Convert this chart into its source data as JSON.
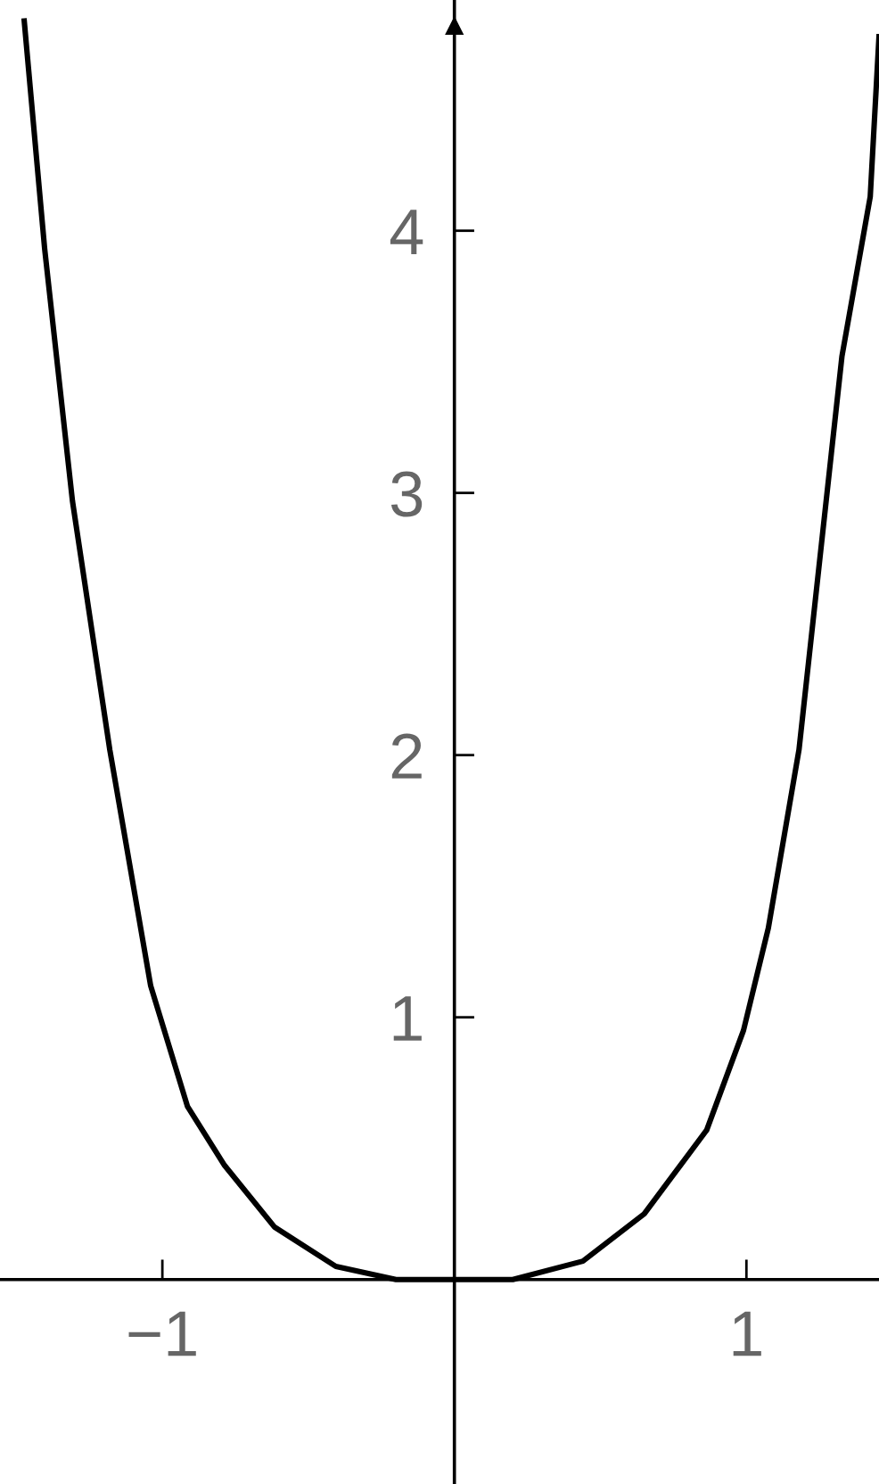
{
  "chart_data": {
    "type": "line",
    "x": [
      -1.473,
      -1.403,
      -1.308,
      -1.18,
      -1.04,
      -0.914,
      -0.787,
      -0.616,
      -0.406,
      -0.2,
      0,
      0.2,
      0.44,
      0.65,
      0.864,
      0.99,
      1.075,
      1.18,
      1.327,
      1.424,
      1.454
    ],
    "series": [
      {
        "color": "#000000",
        "values": [
          4.8,
          3.93,
          2.97,
          2.02,
          1.12,
          0.66,
          0.435,
          0.2,
          0.05,
          0.0,
          0,
          0.0,
          0.07,
          0.25,
          0.57,
          0.95,
          1.34,
          2.02,
          3.52,
          4.13,
          4.74
        ]
      }
    ],
    "xlim": [
      -1.556,
      1.454
    ],
    "ylim": [
      -0.78,
      4.88
    ],
    "xticks": [
      {
        "value": -1,
        "label": "−1"
      },
      1
    ],
    "yticks": [
      1,
      2,
      3,
      4
    ],
    "grid": false,
    "legend": false,
    "marker": "none",
    "line_style": "solid"
  }
}
